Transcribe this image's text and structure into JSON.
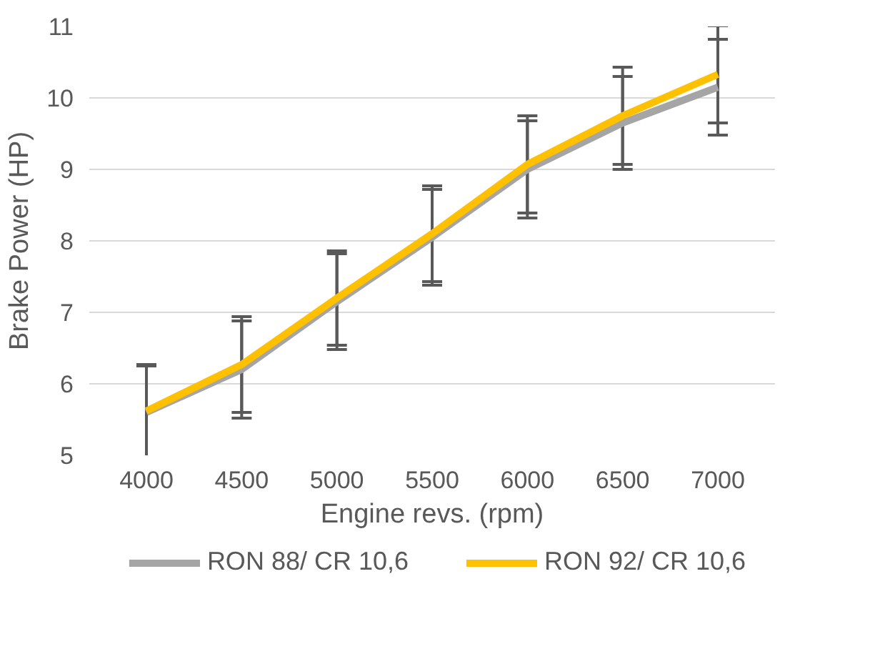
{
  "chart_data": {
    "type": "line",
    "xlabel": "Engine revs. (rpm)",
    "ylabel": "Brake Power (HP)",
    "categories": [
      "4000",
      "4500",
      "5000",
      "5500",
      "6000",
      "6500",
      "7000"
    ],
    "series": [
      {
        "name": "RON 88/ CR 10,6",
        "color": "#a5a5a5",
        "values": [
          5.6,
          6.2,
          7.15,
          8.05,
          9.0,
          9.65,
          10.15
        ],
        "errors": [
          0.65,
          0.68,
          0.67,
          0.67,
          0.68,
          0.65,
          0.67
        ]
      },
      {
        "name": "RON 92/ CR 10,6",
        "color": "#ffc000",
        "values": [
          5.62,
          6.27,
          7.2,
          8.1,
          9.07,
          9.75,
          10.33
        ],
        "errors": [
          0.65,
          0.67,
          0.66,
          0.67,
          0.68,
          0.68,
          0.68
        ]
      }
    ],
    "ylim": [
      5,
      11
    ],
    "yticks": [
      5,
      6,
      7,
      8,
      9,
      10,
      11
    ],
    "grid": "y",
    "legend": "bottom",
    "marker": "none",
    "line_style": "solid"
  }
}
